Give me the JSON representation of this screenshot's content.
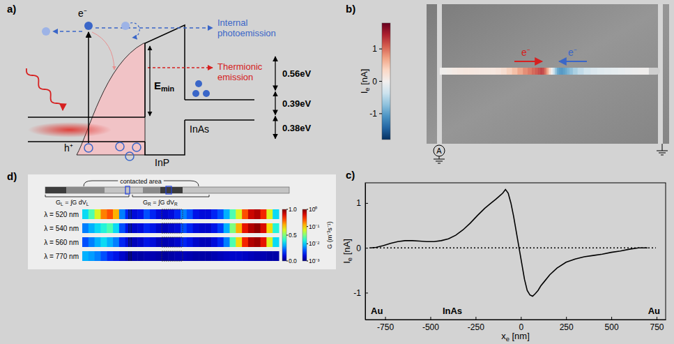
{
  "panel_a": {
    "label": "a)",
    "electron": "e⁻",
    "hole": "h⁺",
    "internal_photoemission": "Internal photoemission",
    "thermionic_emission": "Thermionic emission",
    "e_min": [
      "E",
      "min"
    ],
    "barrier": "InP",
    "well": "InAs",
    "energies": [
      {
        "value": 0.56,
        "label": "0.56eV"
      },
      {
        "value": 0.39,
        "label": "0.39eV"
      },
      {
        "value": 0.38,
        "label": "0.38eV"
      }
    ]
  },
  "panel_b": {
    "label": "b)",
    "electron_labels": [
      "e⁻",
      "e⁻"
    ],
    "ammeter": "A",
    "colorbar": {
      "title": [
        "I",
        "e",
        " [nA]"
      ],
      "range": [
        -1.8,
        1.8
      ],
      "ticks": [
        -1,
        0,
        1
      ]
    }
  },
  "panel_c": {
    "label": "c)"
  },
  "chart_data": {
    "type": "line",
    "x": [
      -830,
      -800,
      -760,
      -720,
      -680,
      -640,
      -600,
      -560,
      -520,
      -480,
      -440,
      -400,
      -360,
      -320,
      -280,
      -240,
      -200,
      -170,
      -140,
      -120,
      -100,
      -85,
      -70,
      -55,
      -40,
      -25,
      -10,
      5,
      20,
      35,
      50,
      65,
      80,
      95,
      110,
      130,
      160,
      200,
      250,
      300,
      350,
      400,
      450,
      500,
      550,
      600,
      650,
      700
    ],
    "values": [
      0,
      0.01,
      0.05,
      0.1,
      0.14,
      0.16,
      0.16,
      0.15,
      0.14,
      0.14,
      0.16,
      0.2,
      0.28,
      0.4,
      0.55,
      0.72,
      0.88,
      0.98,
      1.08,
      1.15,
      1.22,
      1.3,
      1.22,
      1.0,
      0.7,
      0.35,
      0.0,
      -0.35,
      -0.7,
      -0.95,
      -1.05,
      -1.08,
      -1.02,
      -0.95,
      -0.85,
      -0.75,
      -0.6,
      -0.45,
      -0.32,
      -0.25,
      -0.2,
      -0.17,
      -0.14,
      -0.1,
      -0.07,
      -0.03,
      0,
      0
    ],
    "color": "#000000",
    "xlabel": [
      "x",
      "e",
      " [nm]"
    ],
    "ylabel": [
      "I",
      "e",
      " [nA]"
    ],
    "xlim": [
      -860,
      800
    ],
    "ylim": [
      -1.6,
      1.45
    ],
    "xticks": [
      -750,
      -500,
      -250,
      0,
      250,
      500,
      750
    ],
    "yticks": [
      -1,
      0,
      1
    ],
    "annotations": [
      "Au",
      "InAs",
      "Au"
    ],
    "grid": false
  },
  "panel_d": {
    "label": "d)",
    "contacted_area": "contacted area",
    "g_left": [
      "G",
      "L",
      " = ∫G dV",
      "L"
    ],
    "g_right": [
      "G",
      "R",
      " = ∫G dV",
      "R"
    ],
    "rows": [
      {
        "label": "λ = 520 nm",
        "values": [
          0.35,
          0.45,
          0.6,
          0.75,
          0.8,
          0.7,
          0.25,
          0.15,
          0.1,
          0.12,
          0.2,
          0.15,
          0.1,
          0.08,
          0.1,
          0.15,
          0.25,
          0.2,
          0.12,
          0.1,
          0.1,
          0.15,
          0.2,
          0.3,
          0.45,
          0.6,
          0.8,
          0.92,
          0.95,
          0.85,
          0.6,
          0.35
        ]
      },
      {
        "label": "λ = 540 nm",
        "values": [
          0.25,
          0.3,
          0.35,
          0.4,
          0.45,
          0.35,
          0.2,
          0.12,
          0.08,
          0.1,
          0.15,
          0.12,
          0.08,
          0.06,
          0.08,
          0.1,
          0.2,
          0.15,
          0.1,
          0.08,
          0.08,
          0.12,
          0.18,
          0.3,
          0.5,
          0.7,
          0.88,
          0.95,
          0.98,
          0.9,
          0.65,
          0.4
        ]
      },
      {
        "label": "λ = 560 nm",
        "values": [
          0.2,
          0.25,
          0.3,
          0.35,
          0.3,
          0.25,
          0.15,
          0.1,
          0.06,
          0.08,
          0.12,
          0.1,
          0.06,
          0.05,
          0.06,
          0.08,
          0.15,
          0.12,
          0.08,
          0.06,
          0.06,
          0.1,
          0.15,
          0.25,
          0.45,
          0.65,
          0.85,
          0.95,
          0.97,
          0.88,
          0.6,
          0.35
        ]
      },
      {
        "label": "λ = 770 nm",
        "values": [
          0.3,
          0.28,
          0.25,
          0.2,
          0.15,
          0.12,
          0.08,
          0.05,
          0.04,
          0.04,
          0.05,
          0.05,
          0.04,
          0.03,
          0.04,
          0.05,
          0.06,
          0.05,
          0.04,
          0.04,
          0.04,
          0.05,
          0.06,
          0.07,
          0.08,
          0.08,
          0.07,
          0.06,
          0.05,
          0.05,
          0.04,
          0.04
        ]
      }
    ],
    "colorbar": {
      "title": "G (m⁻³s⁻¹)",
      "range": [
        0,
        1
      ],
      "ticks": [
        {
          "value": 1,
          "label": "1.0"
        },
        0.5,
        {
          "value": 0,
          "label": "0.0"
        }
      ],
      "log_range": [
        0.001,
        1
      ],
      "log_ticks": [
        {
          "value": 1,
          "label": "10⁰"
        },
        {
          "value": 0.1,
          "label": "10⁻¹"
        },
        {
          "value": 0.01,
          "label": "10⁻²"
        },
        {
          "value": 0.001,
          "label": "10⁻³"
        }
      ]
    }
  }
}
